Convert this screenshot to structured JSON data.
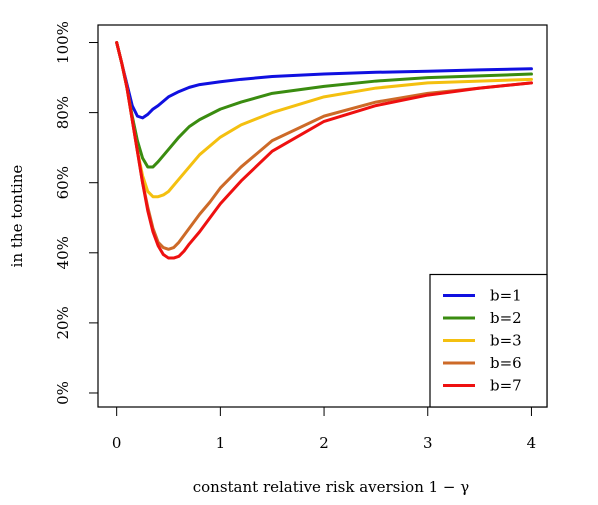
{
  "chart_data": {
    "type": "line",
    "title": "",
    "xlabel": "constant relative risk aversion 1 − γ",
    "ylabel": "in the tontine",
    "xlim": [
      -0.18,
      4.15
    ],
    "ylim": [
      -0.04,
      1.05
    ],
    "xticks": [
      0,
      1,
      2,
      3,
      4
    ],
    "xtick_labels": [
      "0",
      "1",
      "2",
      "3",
      "4"
    ],
    "yticks": [
      0,
      0.2,
      0.4,
      0.6,
      0.8,
      1.0
    ],
    "ytick_labels": [
      "0%",
      "20%",
      "40%",
      "60%",
      "80%",
      "100%"
    ],
    "grid": false,
    "legend_position": "bottom-right",
    "series": [
      {
        "name": "b=1",
        "color": "#1010e0",
        "x": [
          0,
          0.05,
          0.1,
          0.15,
          0.2,
          0.25,
          0.3,
          0.35,
          0.4,
          0.5,
          0.6,
          0.7,
          0.8,
          1.0,
          1.2,
          1.5,
          2.0,
          2.5,
          3.0,
          3.5,
          4.0
        ],
        "y": [
          1.0,
          0.94,
          0.88,
          0.82,
          0.79,
          0.785,
          0.795,
          0.81,
          0.82,
          0.845,
          0.86,
          0.872,
          0.88,
          0.888,
          0.895,
          0.903,
          0.91,
          0.915,
          0.918,
          0.922,
          0.925
        ]
      },
      {
        "name": "b=2",
        "color": "#3a8c10",
        "x": [
          0,
          0.05,
          0.1,
          0.15,
          0.2,
          0.25,
          0.3,
          0.35,
          0.4,
          0.5,
          0.6,
          0.7,
          0.8,
          1.0,
          1.2,
          1.5,
          2.0,
          2.5,
          3.0,
          3.5,
          4.0
        ],
        "y": [
          1.0,
          0.94,
          0.87,
          0.79,
          0.72,
          0.67,
          0.645,
          0.645,
          0.66,
          0.695,
          0.73,
          0.76,
          0.78,
          0.81,
          0.83,
          0.855,
          0.875,
          0.89,
          0.9,
          0.905,
          0.91
        ]
      },
      {
        "name": "b=3",
        "color": "#f4c010",
        "x": [
          0,
          0.05,
          0.1,
          0.15,
          0.2,
          0.25,
          0.3,
          0.35,
          0.4,
          0.45,
          0.5,
          0.6,
          0.7,
          0.8,
          1.0,
          1.2,
          1.5,
          2.0,
          2.5,
          3.0,
          3.5,
          4.0
        ],
        "y": [
          1.0,
          0.94,
          0.87,
          0.78,
          0.69,
          0.62,
          0.575,
          0.56,
          0.56,
          0.565,
          0.575,
          0.61,
          0.645,
          0.68,
          0.73,
          0.765,
          0.8,
          0.845,
          0.87,
          0.885,
          0.89,
          0.895
        ]
      },
      {
        "name": "b=6",
        "color": "#cd6a28",
        "x": [
          0,
          0.05,
          0.1,
          0.15,
          0.2,
          0.25,
          0.3,
          0.35,
          0.4,
          0.45,
          0.5,
          0.55,
          0.6,
          0.65,
          0.7,
          0.8,
          0.9,
          1.0,
          1.2,
          1.5,
          2.0,
          2.5,
          3.0,
          3.5,
          4.0
        ],
        "y": [
          1.0,
          0.94,
          0.87,
          0.78,
          0.69,
          0.6,
          0.53,
          0.47,
          0.43,
          0.415,
          0.41,
          0.415,
          0.43,
          0.45,
          0.47,
          0.51,
          0.545,
          0.585,
          0.645,
          0.72,
          0.79,
          0.83,
          0.855,
          0.87,
          0.885
        ]
      },
      {
        "name": "b=7",
        "color": "#ee1010",
        "x": [
          0,
          0.05,
          0.1,
          0.15,
          0.2,
          0.25,
          0.3,
          0.35,
          0.4,
          0.45,
          0.5,
          0.55,
          0.6,
          0.65,
          0.7,
          0.8,
          0.9,
          1.0,
          1.2,
          1.5,
          2.0,
          2.5,
          3.0,
          3.5,
          4.0
        ],
        "y": [
          1.0,
          0.94,
          0.87,
          0.78,
          0.69,
          0.6,
          0.52,
          0.46,
          0.42,
          0.395,
          0.385,
          0.385,
          0.39,
          0.405,
          0.425,
          0.46,
          0.5,
          0.54,
          0.605,
          0.69,
          0.775,
          0.82,
          0.85,
          0.87,
          0.885
        ]
      }
    ]
  }
}
